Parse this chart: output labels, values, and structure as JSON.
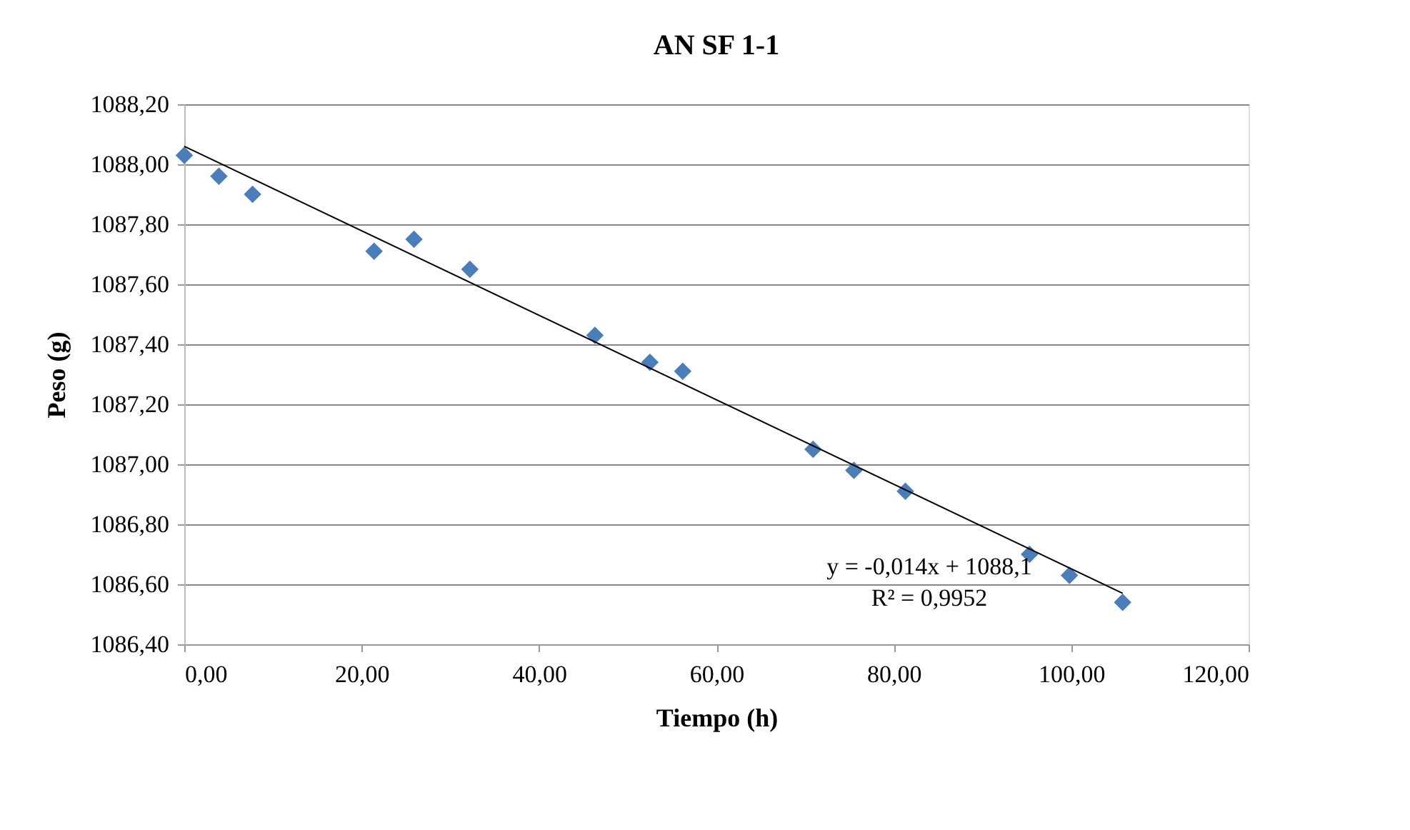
{
  "chart_data": {
    "type": "scatter",
    "title": "AN SF 1-1",
    "xlabel": "Tiempo (h)",
    "ylabel": "Peso (g)",
    "xlim": [
      0,
      120
    ],
    "xticks": [
      {
        "value": 0,
        "label": "0,00"
      },
      {
        "value": 20,
        "label": "20,00"
      },
      {
        "value": 40,
        "label": "40,00"
      },
      {
        "value": 60,
        "label": "60,00"
      },
      {
        "value": 80,
        "label": "80,00"
      },
      {
        "value": 100,
        "label": "100,00"
      },
      {
        "value": 120,
        "label": "120,00"
      }
    ],
    "ylim": [
      1086.4,
      1088.2
    ],
    "yticks": [
      {
        "value": 1086.4,
        "label": "1086,40"
      },
      {
        "value": 1086.6,
        "label": "1086,60"
      },
      {
        "value": 1086.8,
        "label": "1086,80"
      },
      {
        "value": 1087.0,
        "label": "1087,00"
      },
      {
        "value": 1087.2,
        "label": "1087,20"
      },
      {
        "value": 1087.4,
        "label": "1087,40"
      },
      {
        "value": 1087.6,
        "label": "1087,60"
      },
      {
        "value": 1087.8,
        "label": "1087,80"
      },
      {
        "value": 1088.0,
        "label": "1088,00"
      },
      {
        "value": 1088.2,
        "label": "1088,20"
      }
    ],
    "grid": "y",
    "legend": false,
    "marker": "diamond",
    "series": [
      {
        "color": "#4a7ebb",
        "x": [
          0,
          3.9,
          7.7,
          21.4,
          25.9,
          32.2,
          46.3,
          52.5,
          56.2,
          70.9,
          75.5,
          81.3,
          95.3,
          99.8,
          105.8
        ],
        "values": [
          1088.03,
          1087.96,
          1087.9,
          1087.71,
          1087.75,
          1087.65,
          1087.43,
          1087.34,
          1087.31,
          1087.05,
          1086.98,
          1086.91,
          1086.7,
          1086.63,
          1086.54
        ]
      },
      {
        "type": "line",
        "color": "#000000",
        "line_style": "solid",
        "marker": "none",
        "x": [
          0,
          105.8
        ],
        "values": [
          1088.06,
          1086.57
        ]
      }
    ],
    "annotations": [
      "y = -0,014x + 1088,1\nR² = 0,9952"
    ]
  }
}
